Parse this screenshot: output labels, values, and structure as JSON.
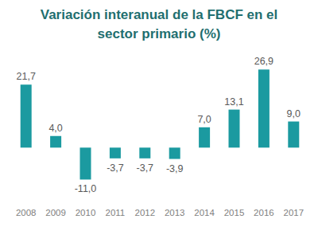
{
  "chart_data": {
    "type": "bar",
    "title": "Variación interanual de la FBCF en el sector primario (%)",
    "categories": [
      "2008",
      "2009",
      "2010",
      "2011",
      "2012",
      "2013",
      "2014",
      "2015",
      "2016",
      "2017"
    ],
    "values": [
      21.7,
      4.0,
      -11.0,
      -3.7,
      -3.7,
      -3.9,
      7.0,
      13.1,
      26.9,
      9.0
    ],
    "value_labels": [
      "21,7",
      "4,0",
      "-11,0",
      "-3,7",
      "-3,7",
      "-3,9",
      "7,0",
      "13,1",
      "26,9",
      "9,0"
    ],
    "color": "#1b9aa0",
    "ylim": [
      -15,
      30
    ],
    "data_labels": true,
    "tick_labels": false,
    "grid": false
  }
}
